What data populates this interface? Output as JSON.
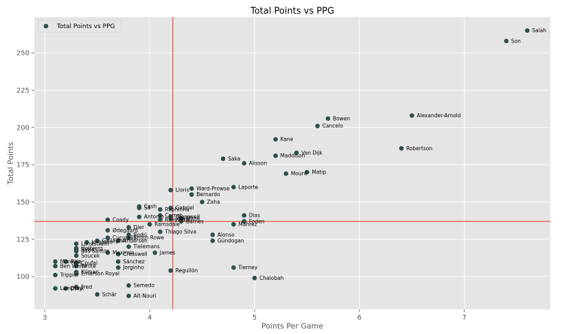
{
  "chart_data": {
    "type": "scatter",
    "title": "Total Points vs PPG",
    "xlabel": "Points Per Game",
    "ylabel": "Total Points",
    "xlim": [
      2.9,
      7.82
    ],
    "ylim": [
      78,
      274
    ],
    "xticks": [
      3,
      4,
      5,
      6,
      7
    ],
    "yticks": [
      100,
      125,
      150,
      175,
      200,
      225,
      250
    ],
    "grid": true,
    "legend_position": "top-left",
    "series": [
      {
        "name": "Total Points vs PPG",
        "color": "#2f4f4f",
        "points": [
          {
            "label": "Salah",
            "x": 7.6,
            "y": 265
          },
          {
            "label": "Son",
            "x": 7.4,
            "y": 258
          },
          {
            "label": "Alexander-Arnold",
            "x": 6.5,
            "y": 208
          },
          {
            "label": "Bowen",
            "x": 5.7,
            "y": 206
          },
          {
            "label": "Cancelo",
            "x": 5.6,
            "y": 201
          },
          {
            "label": "Robertson",
            "x": 6.4,
            "y": 186
          },
          {
            "label": "Kane",
            "x": 5.2,
            "y": 192
          },
          {
            "label": "Van Dijk",
            "x": 5.4,
            "y": 183
          },
          {
            "label": "Maddison",
            "x": 5.2,
            "y": 181
          },
          {
            "label": "Saka",
            "x": 4.7,
            "y": 179
          },
          {
            "label": "Alisson",
            "x": 4.9,
            "y": 176
          },
          {
            "label": "Matip",
            "x": 5.5,
            "y": 170
          },
          {
            "label": "Mount",
            "x": 5.3,
            "y": 169
          },
          {
            "label": "Laporte",
            "x": 4.8,
            "y": 160
          },
          {
            "label": "Ward-Prowse",
            "x": 4.4,
            "y": 159
          },
          {
            "label": "Lloris",
            "x": 4.2,
            "y": 158
          },
          {
            "label": "Bernardo",
            "x": 4.4,
            "y": 155
          },
          {
            "label": "Zaha",
            "x": 4.5,
            "y": 150
          },
          {
            "label": "Cash",
            "x": 3.9,
            "y": 147
          },
          {
            "label": "Sá",
            "x": 3.9,
            "y": 146
          },
          {
            "label": "Gabriel",
            "x": 4.2,
            "y": 146
          },
          {
            "label": "Raphinha",
            "x": 4.1,
            "y": 145
          },
          {
            "label": "Dias",
            "x": 4.9,
            "y": 141
          },
          {
            "label": "Antonio",
            "x": 3.9,
            "y": 140
          },
          {
            "label": "Cornet",
            "x": 4.1,
            "y": 141
          },
          {
            "label": "Cresswell",
            "x": 4.2,
            "y": 140
          },
          {
            "label": "Jota",
            "x": 4.2,
            "y": 139
          },
          {
            "label": "Mané",
            "x": 4.3,
            "y": 139
          },
          {
            "label": "Ramsdale",
            "x": 4.1,
            "y": 138
          },
          {
            "label": "Barnes",
            "x": 4.3,
            "y": 137
          },
          {
            "label": "Foden",
            "x": 4.9,
            "y": 137
          },
          {
            "label": "Coady",
            "x": 3.6,
            "y": 138
          },
          {
            "label": "Ramsdale",
            "x": 4.0,
            "y": 135
          },
          {
            "label": "Mahrez",
            "x": 4.8,
            "y": 135
          },
          {
            "label": "Dier",
            "x": 3.8,
            "y": 133
          },
          {
            "label": "Ødegaard",
            "x": 3.6,
            "y": 131
          },
          {
            "label": "Thiago Silva",
            "x": 4.1,
            "y": 130
          },
          {
            "label": "Rodri",
            "x": 3.8,
            "y": 128
          },
          {
            "label": "Alonso",
            "x": 4.6,
            "y": 128
          },
          {
            "label": "Cucurella",
            "x": 3.6,
            "y": 126
          },
          {
            "label": "Smith Rowe",
            "x": 3.8,
            "y": 126
          },
          {
            "label": "Andersen",
            "x": 3.7,
            "y": 124
          },
          {
            "label": "Gündogan",
            "x": 4.6,
            "y": 124
          },
          {
            "label": "Gallagher",
            "x": 3.5,
            "y": 124
          },
          {
            "label": "Jorginho",
            "x": 3.4,
            "y": 123
          },
          {
            "label": "Lundstram",
            "x": 3.3,
            "y": 122
          },
          {
            "label": "Tielemans",
            "x": 3.8,
            "y": 120
          },
          {
            "label": "Hojbjerg",
            "x": 3.3,
            "y": 119
          },
          {
            "label": "Saiss",
            "x": 3.3,
            "y": 118
          },
          {
            "label": "dos Santos",
            "x": 3.3,
            "y": 117
          },
          {
            "label": "Maximin",
            "x": 3.6,
            "y": 116
          },
          {
            "label": "Cresswell",
            "x": 3.7,
            "y": 115
          },
          {
            "label": "James",
            "x": 4.05,
            "y": 116
          },
          {
            "label": "Soucek",
            "x": 3.3,
            "y": 114
          },
          {
            "label": "Sánchez",
            "x": 3.7,
            "y": 110
          },
          {
            "label": "Mitrovic",
            "x": 3.1,
            "y": 110
          },
          {
            "label": "Rice",
            "x": 3.2,
            "y": 110
          },
          {
            "label": "Coufal",
            "x": 3.3,
            "y": 109
          },
          {
            "label": "White",
            "x": 3.3,
            "y": 107
          },
          {
            "label": "Ben White",
            "x": 3.1,
            "y": 107
          },
          {
            "label": "Jorginho",
            "x": 3.7,
            "y": 106
          },
          {
            "label": "Tierney",
            "x": 4.8,
            "y": 106
          },
          {
            "label": "Reguilón",
            "x": 4.2,
            "y": 104
          },
          {
            "label": "Kilman",
            "x": 3.3,
            "y": 103
          },
          {
            "label": "Emerson Royal",
            "x": 3.3,
            "y": 102
          },
          {
            "label": "Trippier",
            "x": 3.1,
            "y": 101
          },
          {
            "label": "Chalobah",
            "x": 5.0,
            "y": 99
          },
          {
            "label": "Semedo",
            "x": 3.8,
            "y": 94
          },
          {
            "label": "Fred",
            "x": 3.3,
            "y": 93
          },
          {
            "label": "Dunk",
            "x": 3.2,
            "y": 92
          },
          {
            "label": "Lamptey",
            "x": 3.1,
            "y": 92
          },
          {
            "label": "Schär",
            "x": 3.5,
            "y": 88
          },
          {
            "label": "Aït-Nouri",
            "x": 3.8,
            "y": 87
          }
        ]
      }
    ],
    "reference_lines": {
      "color": "#e8604c",
      "vertical_x": 4.22,
      "horizontal_y": 137
    }
  }
}
